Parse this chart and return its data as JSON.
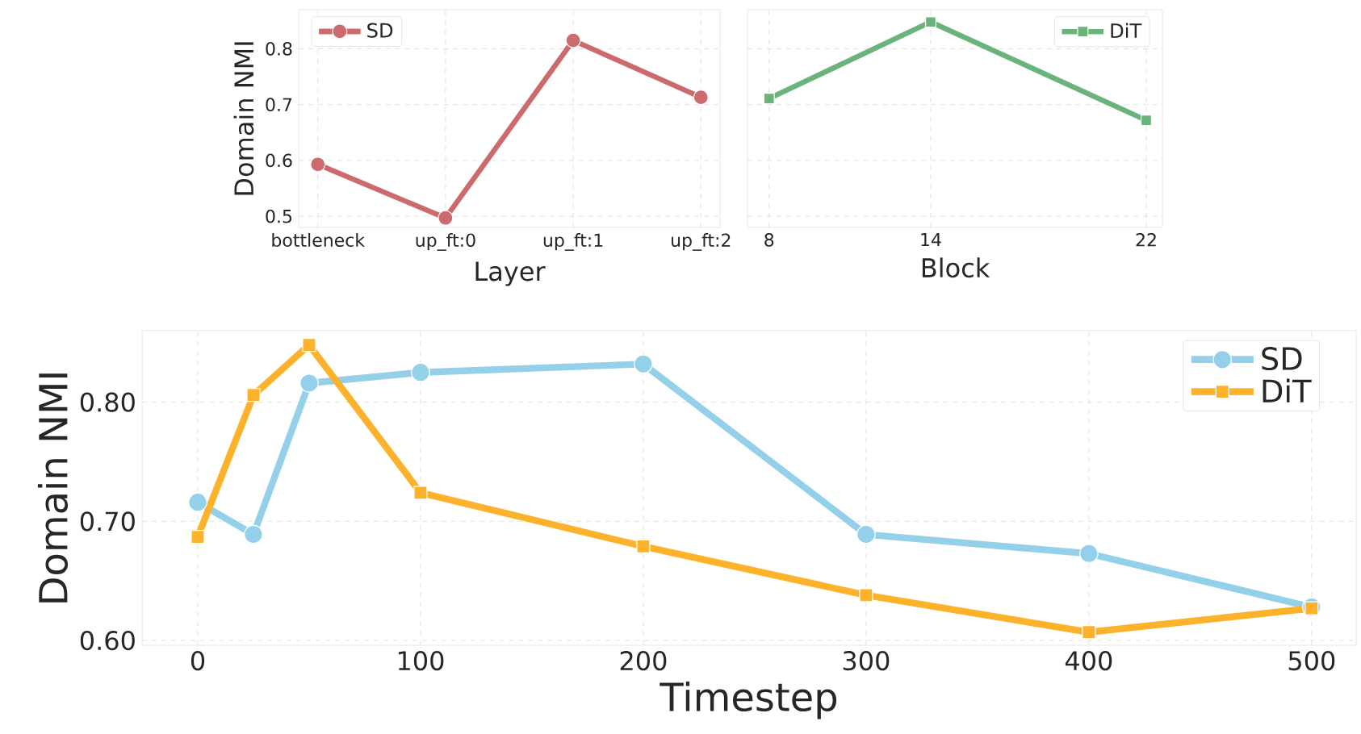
{
  "chart_data": [
    {
      "type": "line",
      "xlabel": "Layer",
      "ylabel": "Domain NMI",
      "categories": [
        "bottleneck",
        "up_ft:0",
        "up_ft:1",
        "up_ft:2"
      ],
      "ylim": [
        0.48,
        0.87
      ],
      "yticks": [
        0.5,
        0.6,
        0.7,
        0.8
      ],
      "grid": true,
      "legend": "top left",
      "marker": "circle",
      "series": [
        {
          "name": "SD",
          "color": "#cd6a6d",
          "values": [
            0.593,
            0.497,
            0.815,
            0.713
          ]
        }
      ]
    },
    {
      "type": "line",
      "xlabel": "Block",
      "x": [
        8,
        14,
        22
      ],
      "xlim": [
        7.2,
        22.6
      ],
      "xticks": [
        8,
        14,
        22
      ],
      "ylim": [
        0.48,
        0.87
      ],
      "yticks": [
        0.5,
        0.6,
        0.7,
        0.8
      ],
      "tick_labels": "x",
      "grid": true,
      "legend": "top right",
      "marker": "square",
      "series": [
        {
          "name": "DiT",
          "color": "#6ab47c",
          "values": [
            0.711,
            0.848,
            0.672
          ]
        }
      ]
    },
    {
      "type": "line",
      "xlabel": "Timestep",
      "ylabel": "Domain NMI",
      "x": [
        0,
        25,
        50,
        100,
        200,
        300,
        400,
        500
      ],
      "xlim": [
        -25,
        520
      ],
      "xticks": [
        0,
        100,
        200,
        300,
        400,
        500
      ],
      "ylim": [
        0.596,
        0.86
      ],
      "yticks": [
        {
          "value": 0.6,
          "label": "0.60"
        },
        {
          "value": 0.7,
          "label": "0.70"
        },
        {
          "value": 0.8,
          "label": "0.80"
        }
      ],
      "grid": true,
      "legend": "top right",
      "series": [
        {
          "name": "SD",
          "color": "#95d0ea",
          "marker": "circle",
          "values": [
            0.716,
            0.689,
            0.816,
            0.825,
            0.832,
            0.689,
            0.673,
            0.628
          ]
        },
        {
          "name": "DiT",
          "color": "#fdb22b",
          "marker": "square",
          "values": [
            0.687,
            0.806,
            0.848,
            0.724,
            0.679,
            0.638,
            0.607,
            0.627
          ]
        }
      ]
    }
  ]
}
